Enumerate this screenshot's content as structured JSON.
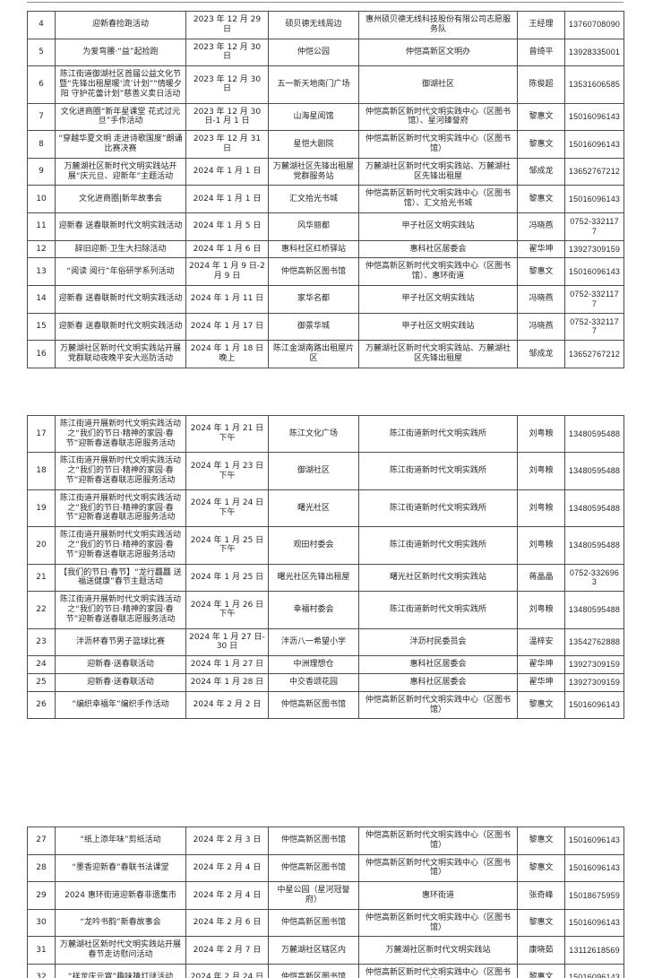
{
  "page": {
    "background_color": "#ffffff",
    "border_color": "#4d4d4d"
  },
  "blocks": [
    {
      "rows": [
        [
          "4",
          "迎新春捡跑活动",
          "2023 年 12 月 29 日",
          "硕贝德无线周边",
          "惠州硕贝德无线科技股份有限公司志愿服务队",
          "王经理",
          "13760708090"
        ],
        [
          "5",
          "为爱弯腰·“益”起捡跑",
          "2023 年 12 月 30 日",
          "仲恺公园",
          "仲恺高新区文明办",
          "曾绮平",
          "13928335001"
        ],
        [
          "6",
          "陈江街道御湖社区首届公益文化节暨“先锋出租屋暖‘流’计划”“情暖夕阳 守护花蕾计划”慈善义卖日活动",
          "2023 年 12 月 30 日",
          "五一新天地南门广场",
          "御湖社区",
          "陈俊超",
          "13531606585"
        ],
        [
          "7",
          "文化进商圈“新年星课堂 花式过元旦”手作活动",
          "2023 年 12 月 30 日-1 月 1 日",
          "山海星阅馆",
          "仲恺高新区新时代文明实践中心（区图书馆）、星河臻誉府",
          "黎惠文",
          "15016096143"
        ],
        [
          "8",
          "“穿越华夏文明 走进诗歌国度”朗诵比赛决赛",
          "2023 年 12 月 31 日",
          "星恺大剧院",
          "仲恺高新区新时代文明实践中心（区图书馆）",
          "黎惠文",
          "15016096143"
        ],
        [
          "9",
          "万麓湖社区新时代文明实践站开展“庆元旦、迎新年”主题活动",
          "2024 年 1 月 1 日",
          "万麓湖社区先锋出租屋党群服务站",
          "万麓湖社区新时代文明实践站、万麓湖社区先锋出租屋",
          "邹成龙",
          "13652767212"
        ],
        [
          "10",
          "文化进商圈|新年故事会",
          "2024 年 1 月 1 日",
          "汇文拾光书城",
          "仲恺高新区新时代文明实践中心（区图书馆）、汇文拾光书城",
          "黎惠文",
          "15016096143"
        ],
        [
          "11",
          "迎新春 送春联新时代文明实践活动",
          "2024 年 1 月 5 日",
          "风华丽都",
          "甲子社区文明实践站",
          "冯晓燕",
          "0752-3321177"
        ],
        [
          "12",
          "辞旧迎新·卫生大扫除活动",
          "2024 年 1 月 6 日",
          "惠科社区红桥驿站",
          "惠科社区居委会",
          "翟华坤",
          "13927309159"
        ],
        [
          "13",
          "“阅读 阅行”年俗研学系列活动",
          "2024 年 1 月 9 日-2 月 9 日",
          "仲恺高新区图书馆",
          "仲恺高新区新时代文明实践中心（区图书馆）、惠环街道",
          "黎惠文",
          "15016096143"
        ],
        [
          "14",
          "迎新春 送春联新时代文明实践活动",
          "2024 年 1 月 11 日",
          "家华名都",
          "甲子社区文明实践站",
          "冯晓燕",
          "0752-3321177"
        ],
        [
          "15",
          "迎新春 送春联新时代文明实践活动",
          "2024 年 1 月 17 日",
          "御景华城",
          "甲子社区文明实践站",
          "冯晓燕",
          "0752-3321177"
        ],
        [
          "16",
          "万麓湖社区新时代文明实践站开展党群联动夜晚平安大巡防活动",
          "2024 年 1 月 18 日 晚上",
          "陈江金湖南路出租屋片区",
          "万麓湖社区新时代文明实践站、万麓湖社区先锋出租屋",
          "邹成龙",
          "13652767212"
        ]
      ]
    },
    {
      "rows": [
        [
          "17",
          "陈江街道开展新时代文明实践活动之“我们的节日·精神的家园·春节”迎新春送春联志愿服务活动",
          "2024 年 1 月 21 日 下午",
          "陈江文化广场",
          "陈江街道新时代文明实践所",
          "刘粤粮",
          "13480595488"
        ],
        [
          "18",
          "陈江街道开展新时代文明实践活动之“我们的节日·精神的家园·春节”迎新春送春联志愿服务活动",
          "2024 年 1 月 23 日 下午",
          "御湖社区",
          "陈江街道新时代文明实践所",
          "刘粤粮",
          "13480595488"
        ],
        [
          "19",
          "陈江街道开展新时代文明实践活动之“我们的节日·精神的家园·春节”迎新春送春联志愿服务活动",
          "2024 年 1 月 24 日 下午",
          "曙光社区",
          "陈江街道新时代文明实践所",
          "刘粤粮",
          "13480595488"
        ],
        [
          "20",
          "陈江街道开展新时代文明实践活动之“我们的节日·精神的家园·春节”迎新春送春联志愿服务活动",
          "2024 年 1 月 25 日 下午",
          "观田村委会",
          "陈江街道新时代文明实践所",
          "刘粤粮",
          "13480595488"
        ],
        [
          "21",
          "【我们的节日·春节】“龙行龘龘 送福送健康”春节主题活动",
          "2024 年 1 月 25 日",
          "曙光社区先锋出租屋",
          "曙光社区新时代文明实践站",
          "蒋晶晶",
          "0752-3326963"
        ],
        [
          "22",
          "陈江街道开展新时代文明实践活动之“我们的节日·精神的家园·春节”迎新春送春联志愿服务活动",
          "2024 年 1 月 26 日 下午",
          "幸福村委会",
          "陈江街道新时代文明实践所",
          "刘粤粮",
          "13480595488"
        ],
        [
          "23",
          "泮沥杯春节男子篮球比赛",
          "2024 年 1 月 27 日-30 日",
          "泮沥八一希望小学",
          "泮沥村民委员会",
          "温梓安",
          "13542762888"
        ],
        [
          "24",
          "迎新春·送春联活动",
          "2024 年 1 月 27 日",
          "中洲理想仓",
          "惠科社区居委会",
          "翟华坤",
          "13927309159"
        ],
        [
          "25",
          "迎新春·送春联活动",
          "2024 年 1 月 28 日",
          "中交香颂花园",
          "惠科社区居委会",
          "翟华坤",
          "13927309159"
        ],
        [
          "26",
          "“编织幸福年”编织手作活动",
          "2024 年 2 月 2 日",
          "仲恺高新区图书馆",
          "仲恺高新区新时代文明实践中心（区图书馆）",
          "黎惠文",
          "15016096143"
        ]
      ]
    },
    {
      "rows": [
        [
          "27",
          "“纸上添年味”剪纸活动",
          "2024 年 2 月 3 日",
          "仲恺高新区图书馆",
          "仲恺高新区新时代文明实践中心（区图书馆）",
          "黎惠文",
          "15016096143"
        ],
        [
          "28",
          "“墨香迎新春”春联书法课堂",
          "2024 年 2 月 4 日",
          "仲恺高新区图书馆",
          "仲恺高新区新时代文明实践中心（区图书馆）",
          "黎惠文",
          "15016096143"
        ],
        [
          "29",
          "2024 惠环街道迎新春非遗集市",
          "2024 年 2 月 4 日",
          "中星公园（星河冠誉府）",
          "惠环街道",
          "张奇峰",
          "15018675959"
        ],
        [
          "30",
          "“龙吟书韵”新春故事会",
          "2024 年 2 月 6 日",
          "仲恺高新区图书馆",
          "仲恺高新区新时代文明实践中心（区图书馆）",
          "黎惠文",
          "15016096143"
        ],
        [
          "31",
          "万麓湖社区新时代文明实践站开展春节走访慰问活动",
          "2024 年 2 月 7 日",
          "万麓湖社区辖区内",
          "万麓湖社区新时代文明实践站",
          "康晓茹",
          "13112618569"
        ],
        [
          "32",
          "“祥龙庆元宵”趣味猜灯谜活动",
          "2024 年 2 月 24 日",
          "仲恺高新区图书馆",
          "仲恺高新区新时代文明实践中心（区图书馆）",
          "黎惠文",
          "15016096143"
        ]
      ]
    }
  ]
}
